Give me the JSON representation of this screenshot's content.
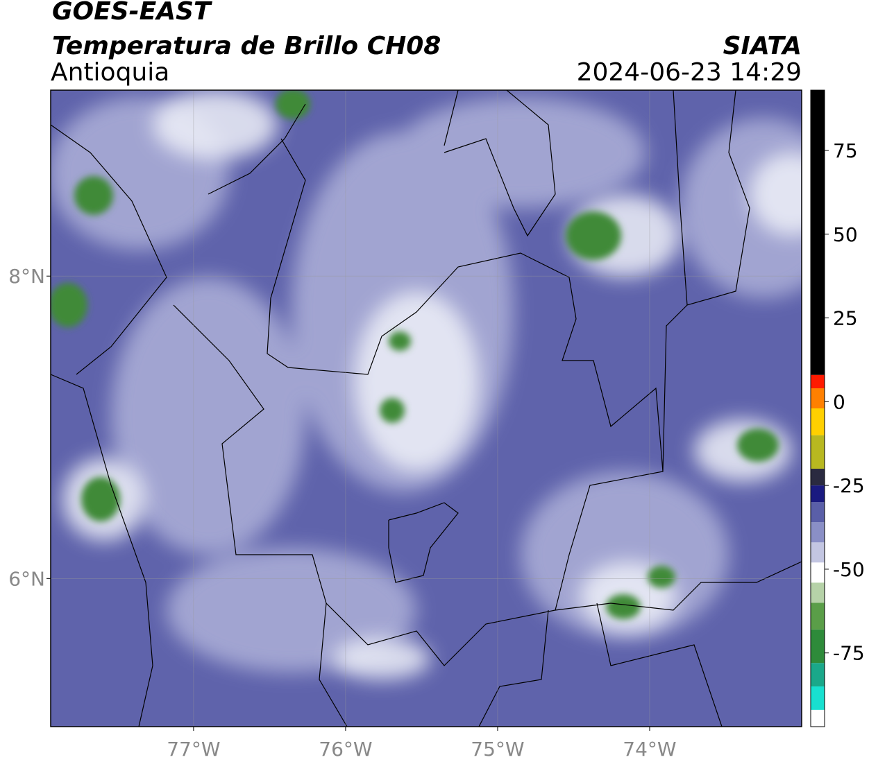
{
  "map": {
    "title": "GOES-EAST",
    "subtitle": "Temperatura de Brillo CH08",
    "region": "Antioquia",
    "source": "SIATA",
    "datetime": "2024-06-23 14:29",
    "xlim": [
      -77.94,
      -73.0
    ],
    "ylim": [
      5.02,
      9.23
    ],
    "xticks": [
      {
        "value": -77,
        "label": "77°W"
      },
      {
        "value": -76,
        "label": "76°W"
      },
      {
        "value": -75,
        "label": "75°W"
      },
      {
        "value": -74,
        "label": "74°W"
      }
    ],
    "yticks": [
      {
        "value": 8,
        "label": "8°N"
      },
      {
        "value": 6,
        "label": "6°N"
      }
    ],
    "grid": true,
    "colorbar": {
      "range": [
        -97,
        93
      ],
      "ticks": [
        75,
        50,
        25,
        0,
        -25,
        -50,
        -75
      ],
      "segments": [
        {
          "from": -97,
          "to": -92,
          "color": "#ffffff"
        },
        {
          "from": -92,
          "to": -85,
          "color": "#18e0d0"
        },
        {
          "from": -85,
          "to": -78,
          "color": "#1aa88a"
        },
        {
          "from": -78,
          "to": -68,
          "color": "#2e8b3a"
        },
        {
          "from": -68,
          "to": -60,
          "color": "#5a9e48"
        },
        {
          "from": -60,
          "to": -54,
          "color": "#b6d2a8"
        },
        {
          "from": -54,
          "to": -48,
          "color": "#ffffff"
        },
        {
          "from": -48,
          "to": -42,
          "color": "#c3c6e2"
        },
        {
          "from": -42,
          "to": -36,
          "color": "#8a8fc6"
        },
        {
          "from": -36,
          "to": -30,
          "color": "#5a5fa8"
        },
        {
          "from": -30,
          "to": -25,
          "color": "#1a1a80"
        },
        {
          "from": -25,
          "to": -20,
          "color": "#2a2a40"
        },
        {
          "from": -20,
          "to": -10,
          "color": "#b8b820"
        },
        {
          "from": -10,
          "to": -2,
          "color": "#ffd000"
        },
        {
          "from": -2,
          "to": 4,
          "color": "#ff8000"
        },
        {
          "from": 4,
          "to": 8,
          "color": "#ff1a00"
        },
        {
          "from": 8,
          "to": 93,
          "color": "#000000"
        }
      ]
    }
  }
}
